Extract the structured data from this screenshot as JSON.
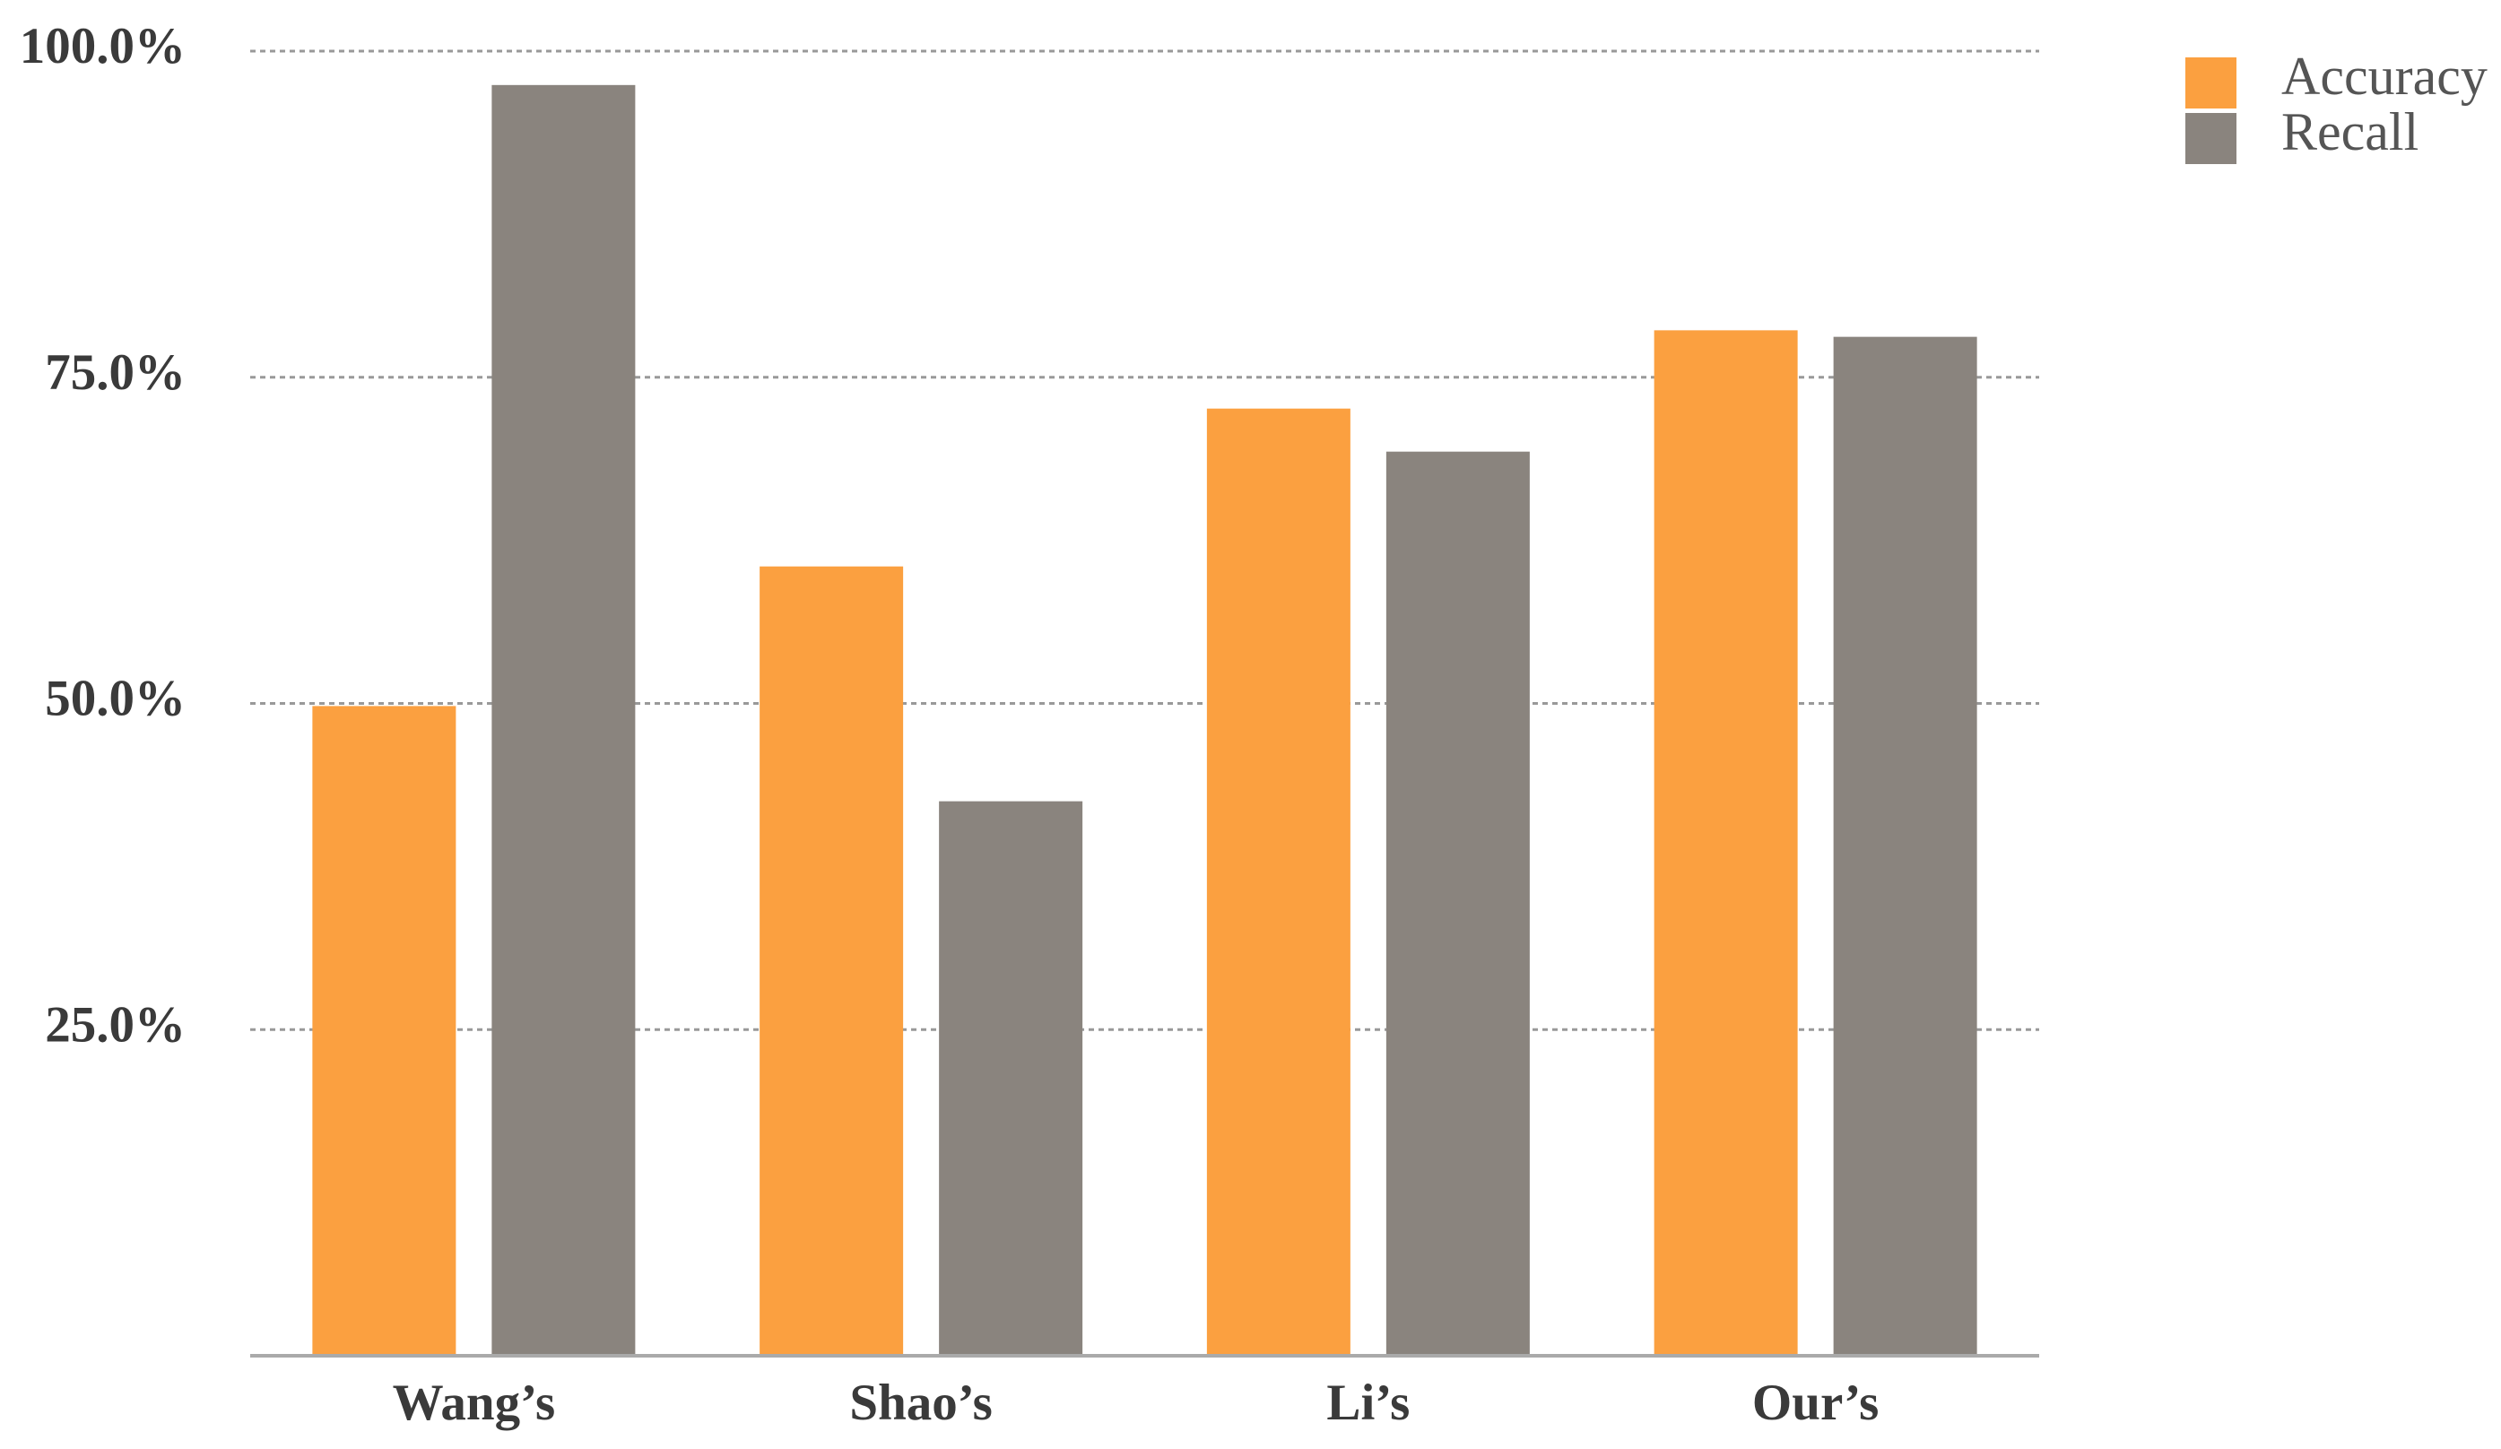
{
  "chart_data": {
    "type": "bar",
    "categories": [
      "Wang’s",
      "Shao’s",
      "Li’s",
      "Our’s"
    ],
    "series": [
      {
        "name": "Accuracy",
        "color": "#fba040",
        "values": [
          49.8,
          60.5,
          72.6,
          78.6
        ]
      },
      {
        "name": "Recall",
        "color": "#8a847e",
        "values": [
          97.4,
          42.5,
          69.3,
          78.1
        ]
      }
    ],
    "ylim": [
      0,
      100
    ],
    "yticks": [
      {
        "value": 25,
        "label": "25.0%"
      },
      {
        "value": 50,
        "label": "50.0%"
      },
      {
        "value": 75,
        "label": "75.0%"
      },
      {
        "value": 100,
        "label": "100.0%"
      }
    ],
    "grid": true,
    "legend": "top-right"
  }
}
